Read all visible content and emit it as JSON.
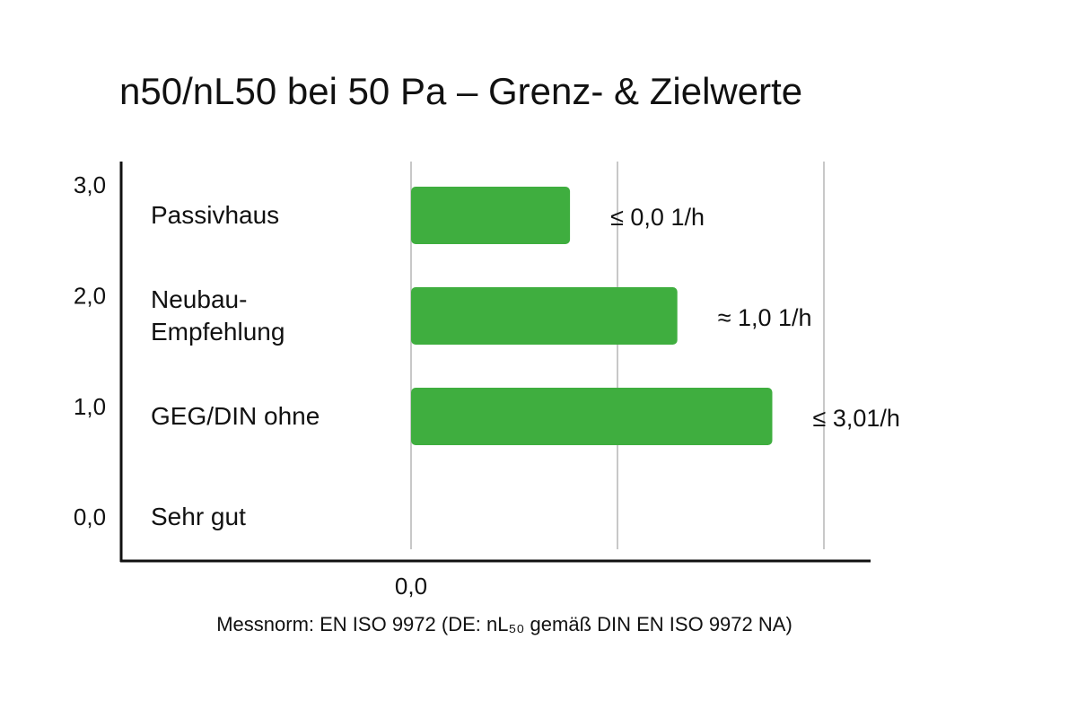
{
  "chart_data": {
    "type": "barh",
    "title": "n50/nL50 bei 50 Pa – Grenz- & Zielwerte",
    "categories": [
      "Passivhaus",
      "Neubau-\nEmpfehlung",
      "GEG/DIN ohne",
      "Sehr gut"
    ],
    "values": [
      0.77,
      1.29,
      1.75,
      null
    ],
    "annotations": [
      "≤ 0,0 1/h",
      "≈ 1,0 1/h",
      "≤ 3,01/h"
    ],
    "color": "#3fae3f",
    "xlim": [
      0,
      2
    ],
    "xticks": [
      {
        "value": 0,
        "label": "0,0"
      }
    ],
    "xgrid": [
      0,
      1,
      2
    ],
    "ylim": [
      -0.38,
      3.23
    ],
    "yticks": [
      {
        "value": 3,
        "label": "3,0"
      },
      {
        "value": 2,
        "label": "2,0"
      },
      {
        "value": 1,
        "label": "1,0"
      },
      {
        "value": 0,
        "label": "0,0"
      }
    ],
    "footnote": "Messnorm: EN ISO 9972 (DE: nL₅₀ gemäß DIN EN ISO 9972 NA)"
  }
}
